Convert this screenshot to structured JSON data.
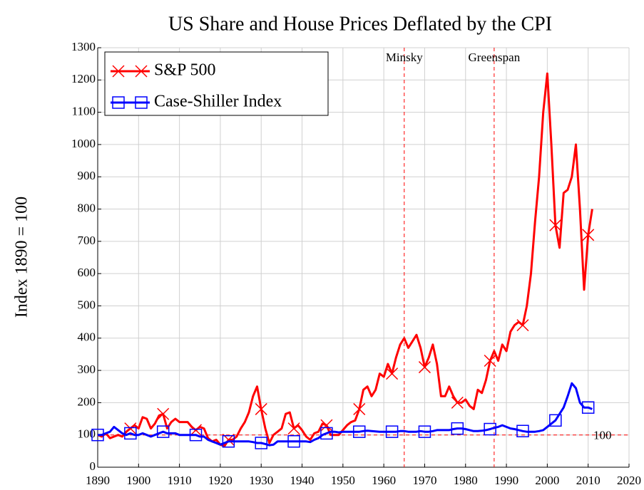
{
  "chart_data": {
    "type": "line",
    "title": "US Share and House Prices Deflated by the CPI",
    "y_label": "Index 1890 = 100",
    "x": [
      1890,
      1891,
      1892,
      1893,
      1894,
      1895,
      1896,
      1897,
      1898,
      1899,
      1900,
      1901,
      1902,
      1903,
      1904,
      1905,
      1906,
      1907,
      1908,
      1909,
      1910,
      1911,
      1912,
      1913,
      1914,
      1915,
      1916,
      1917,
      1918,
      1919,
      1920,
      1921,
      1922,
      1923,
      1924,
      1925,
      1926,
      1927,
      1928,
      1929,
      1930,
      1931,
      1932,
      1933,
      1934,
      1935,
      1936,
      1937,
      1938,
      1939,
      1940,
      1941,
      1942,
      1943,
      1944,
      1945,
      1946,
      1947,
      1948,
      1949,
      1950,
      1951,
      1952,
      1953,
      1954,
      1955,
      1956,
      1957,
      1958,
      1959,
      1960,
      1961,
      1962,
      1963,
      1964,
      1965,
      1966,
      1967,
      1968,
      1969,
      1970,
      1971,
      1972,
      1973,
      1974,
      1975,
      1976,
      1977,
      1978,
      1979,
      1980,
      1981,
      1982,
      1983,
      1984,
      1985,
      1986,
      1987,
      1988,
      1989,
      1990,
      1991,
      1992,
      1993,
      1994,
      1995,
      1996,
      1997,
      1998,
      1999,
      2000,
      2001,
      2002,
      2003,
      2004,
      2005,
      2006,
      2007,
      2008,
      2009,
      2010,
      2011
    ],
    "series": [
      {
        "name": "S&P 500",
        "color": "#ff0000",
        "marker": "x",
        "values": [
          100,
          95,
          105,
          90,
          95,
          100,
          95,
          110,
          120,
          130,
          120,
          155,
          150,
          120,
          135,
          160,
          165,
          120,
          140,
          150,
          140,
          140,
          140,
          125,
          115,
          125,
          120,
          90,
          80,
          85,
          70,
          65,
          85,
          85,
          95,
          120,
          140,
          170,
          220,
          250,
          180,
          120,
          75,
          100,
          110,
          120,
          165,
          170,
          120,
          130,
          115,
          95,
          85,
          105,
          110,
          135,
          130,
          100,
          100,
          100,
          115,
          130,
          140,
          145,
          180,
          240,
          250,
          220,
          240,
          290,
          280,
          320,
          290,
          340,
          380,
          400,
          370,
          390,
          410,
          370,
          310,
          340,
          380,
          320,
          220,
          220,
          250,
          220,
          200,
          200,
          210,
          190,
          180,
          240,
          230,
          270,
          330,
          360,
          330,
          380,
          360,
          420,
          440,
          450,
          440,
          500,
          600,
          760,
          900,
          1100,
          1220,
          1000,
          750,
          680,
          850,
          860,
          900,
          1000,
          800,
          550,
          720,
          800
        ]
      },
      {
        "name": "Case-Shiller Index",
        "color": "#0000ff",
        "marker": "square",
        "values": [
          100,
          100,
          105,
          110,
          125,
          115,
          105,
          100,
          105,
          100,
          100,
          105,
          100,
          95,
          100,
          105,
          110,
          105,
          105,
          105,
          100,
          100,
          100,
          100,
          100,
          95,
          95,
          85,
          80,
          75,
          70,
          75,
          80,
          80,
          80,
          80,
          80,
          80,
          78,
          75,
          75,
          72,
          68,
          70,
          80,
          80,
          80,
          80,
          80,
          80,
          80,
          80,
          78,
          85,
          90,
          100,
          105,
          110,
          110,
          108,
          110,
          110,
          110,
          110,
          110,
          112,
          113,
          112,
          111,
          110,
          110,
          110,
          110,
          110,
          112,
          112,
          110,
          110,
          110,
          112,
          110,
          110,
          112,
          115,
          115,
          115,
          115,
          118,
          120,
          120,
          118,
          115,
          112,
          112,
          113,
          115,
          118,
          122,
          125,
          130,
          125,
          120,
          118,
          115,
          112,
          110,
          110,
          110,
          112,
          115,
          125,
          135,
          145,
          165,
          185,
          220,
          260,
          245,
          200,
          185,
          185,
          180
        ]
      }
    ],
    "vlines": [
      {
        "x": 1965,
        "label": "Minsky"
      },
      {
        "x": 1987,
        "label": "Greenspan"
      }
    ],
    "hline": {
      "y": 100,
      "label": "100"
    },
    "xlim": [
      1890,
      2020
    ],
    "xticks": [
      1890,
      1900,
      1910,
      1920,
      1930,
      1940,
      1950,
      1960,
      1970,
      1980,
      1990,
      2000,
      2010,
      2020
    ],
    "ylim": [
      0,
      1300
    ],
    "yticks": [
      0,
      100,
      200,
      300,
      400,
      500,
      600,
      700,
      800,
      900,
      1000,
      1100,
      1200,
      1300
    ],
    "grid": true,
    "legend": "upper left"
  }
}
